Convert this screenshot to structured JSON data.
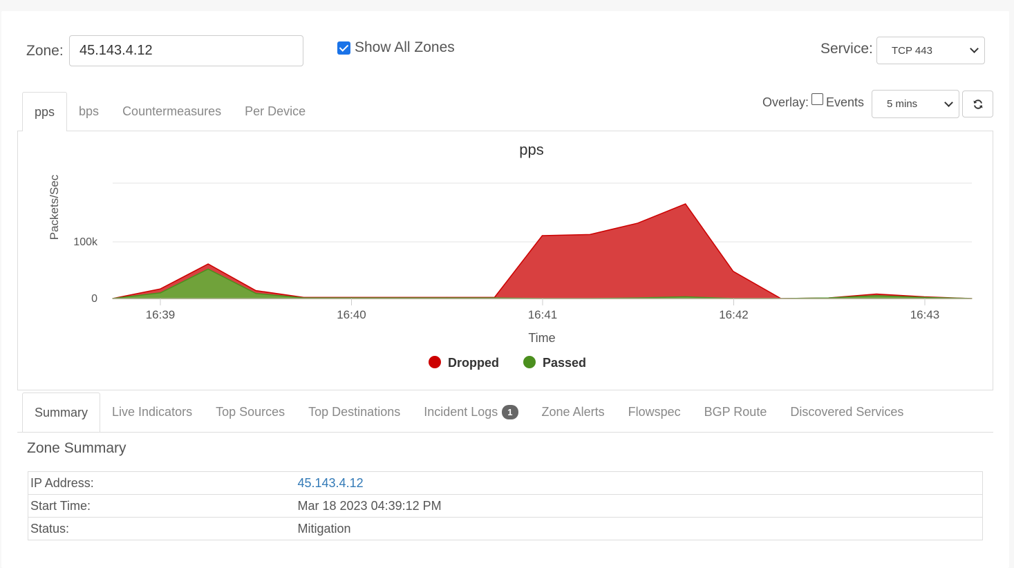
{
  "zone": {
    "label": "Zone:",
    "value": "45.143.4.12"
  },
  "show_all_zones": {
    "label": "Show All Zones",
    "checked": true
  },
  "service": {
    "label": "Service:",
    "selected": "TCP 443"
  },
  "chart_tabs": [
    "pps",
    "bps",
    "Countermeasures",
    "Per Device"
  ],
  "active_chart_tab": "pps",
  "overlay": {
    "label": "Overlay:",
    "events_label": "Events",
    "events_checked": false
  },
  "time_range": {
    "selected": "5 mins"
  },
  "refresh_icon": "refresh-icon",
  "chart_data": {
    "type": "area",
    "title": "pps",
    "xlabel": "Time",
    "ylabel": "Packets/Sec",
    "x_ticks": [
      "16:39",
      "16:40",
      "16:41",
      "16:42",
      "16:43"
    ],
    "y_ticks": [
      {
        "value": 0,
        "label": "0"
      },
      {
        "value": 100000,
        "label": "100k"
      }
    ],
    "ylim": [
      0,
      200000
    ],
    "grid": true,
    "legend_position": "bottom-center",
    "x": [
      "16:38:45",
      "16:39:00",
      "16:39:15",
      "16:39:30",
      "16:39:45",
      "16:40:00",
      "16:40:15",
      "16:40:30",
      "16:40:45",
      "16:41:00",
      "16:41:15",
      "16:41:30",
      "16:41:45",
      "16:42:00",
      "16:42:15",
      "16:42:30",
      "16:42:45",
      "16:43:00",
      "16:43:15"
    ],
    "series": [
      {
        "name": "Dropped",
        "color": "#cc0000",
        "fill": "#d63636",
        "values": [
          0,
          17000,
          61000,
          14000,
          2000,
          2000,
          2000,
          2000,
          2000,
          111000,
          113000,
          133000,
          167000,
          48000,
          0,
          1000,
          8000,
          3000,
          0
        ]
      },
      {
        "name": "Passed",
        "color": "#4b8f1e",
        "fill": "#6aa83a",
        "values": [
          0,
          10000,
          52000,
          9000,
          1000,
          1000,
          1000,
          1000,
          1000,
          0,
          0,
          1000,
          3000,
          0,
          0,
          1000,
          5000,
          2000,
          0
        ]
      }
    ]
  },
  "bottom_tabs": [
    {
      "label": "Summary"
    },
    {
      "label": "Live Indicators"
    },
    {
      "label": "Top Sources"
    },
    {
      "label": "Top Destinations"
    },
    {
      "label": "Incident Logs",
      "badge": "1"
    },
    {
      "label": "Zone Alerts"
    },
    {
      "label": "Flowspec"
    },
    {
      "label": "BGP Route"
    },
    {
      "label": "Discovered Services"
    }
  ],
  "active_bottom_tab": "Summary",
  "summary": {
    "title": "Zone Summary",
    "rows": [
      {
        "label": "IP Address:",
        "value": "45.143.4.12",
        "link": true
      },
      {
        "label": "Start Time:",
        "value": "Mar 18 2023 04:39:12 PM",
        "link": false
      },
      {
        "label": "Status:",
        "value": "Mitigation",
        "link": false
      }
    ]
  }
}
